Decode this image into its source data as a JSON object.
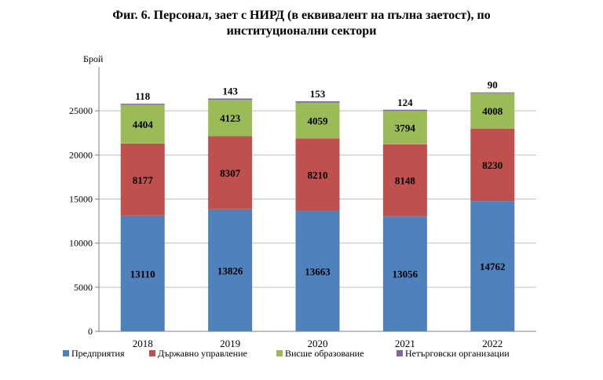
{
  "title_line1": "Фиг. 6. Персонал, зает с НИРД (в еквивалент на пълна заетост), по",
  "title_line2": "институционални сектори",
  "chart_data": {
    "type": "bar",
    "stacked": true,
    "title": "Фиг. 6. Персонал, зает с НИРД (в еквивалент на пълна заетост), по институционални сектори",
    "ylabel": "Брой",
    "xlabel": "",
    "categories": [
      "2018",
      "2019",
      "2020",
      "2021",
      "2022"
    ],
    "ylim": [
      0,
      30000
    ],
    "yticks": [
      0,
      5000,
      10000,
      15000,
      20000,
      25000
    ],
    "grid": true,
    "legend_position": "bottom",
    "series": [
      {
        "name": "Предприятия",
        "color": "#4f81bd",
        "values": [
          13110,
          13826,
          13663,
          13056,
          14762
        ]
      },
      {
        "name": "Държавно управление",
        "color": "#c0504d",
        "values": [
          8177,
          8307,
          8210,
          8148,
          8230
        ]
      },
      {
        "name": "Висше образование",
        "color": "#9bbb59",
        "values": [
          4404,
          4123,
          4059,
          3794,
          4008
        ]
      },
      {
        "name": "Нетърговски организации",
        "color": "#8064a2",
        "values": [
          118,
          143,
          153,
          124,
          90
        ]
      }
    ]
  }
}
